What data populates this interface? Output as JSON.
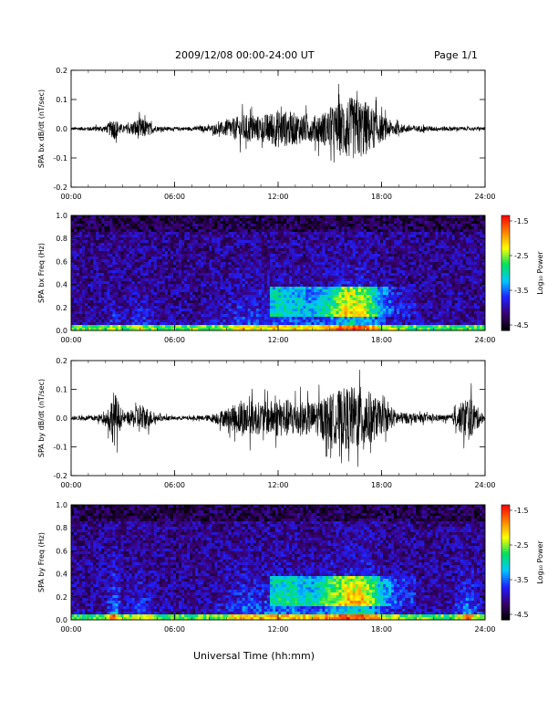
{
  "header": {
    "date_range": "2009/12/08  00:00-24:00 UT",
    "page": "Page 1/1"
  },
  "x_axis": {
    "title": "Universal Time (hh:mm)",
    "ticks": [
      "00:00",
      "06:00",
      "12:00",
      "18:00",
      "24:00"
    ]
  },
  "colorbar": {
    "label": "Log₁₀ Power",
    "ticks": [
      "-1.5",
      "-2.5",
      "-3.5",
      "-4.5"
    ],
    "range": [
      -4.5,
      -1.5
    ],
    "colors": [
      "#000000",
      "#3a0070",
      "#2020ff",
      "#00c8ff",
      "#00e060",
      "#ffff00",
      "#ff8000",
      "#ff0000"
    ]
  },
  "chart_data": [
    {
      "type": "line",
      "ylabel": "SPA bx dB/dt (nT/sec)",
      "ylim": [
        -0.2,
        0.2
      ],
      "yticks": [
        "0.2",
        "0.1",
        "0.0",
        "-0.1",
        "-0.2"
      ],
      "xlim_hours": [
        0,
        24
      ],
      "envelope": {
        "hours": [
          0,
          1,
          2,
          2.5,
          3,
          3.5,
          4,
          5,
          6,
          7,
          8,
          9,
          10,
          11,
          12,
          13,
          14,
          15,
          16,
          17,
          18,
          19,
          20,
          21,
          22,
          23,
          24
        ],
        "amplitude": [
          0.01,
          0.012,
          0.02,
          0.07,
          0.02,
          0.04,
          0.07,
          0.015,
          0.01,
          0.012,
          0.02,
          0.05,
          0.09,
          0.08,
          0.12,
          0.1,
          0.08,
          0.12,
          0.2,
          0.18,
          0.08,
          0.03,
          0.02,
          0.015,
          0.015,
          0.01,
          0.01
        ]
      }
    },
    {
      "type": "heatmap",
      "ylabel": "SPA bx Freq (Hz)",
      "ylim": [
        0.0,
        1.0
      ],
      "yticks": [
        "1.0",
        "0.8",
        "0.6",
        "0.4",
        "0.2",
        "0.0"
      ],
      "xlim_hours": [
        0,
        24
      ],
      "zlim": [
        -4.5,
        -1.5
      ],
      "color_scale": "Log₁₀ Power"
    },
    {
      "type": "line",
      "ylabel": "SPA by dB/dt (nT/sec)",
      "ylim": [
        -0.2,
        0.2
      ],
      "yticks": [
        "0.2",
        "0.1",
        "0.0",
        "-0.1",
        "-0.2"
      ],
      "xlim_hours": [
        0,
        24
      ],
      "envelope": {
        "hours": [
          0,
          1,
          2,
          2.5,
          3,
          3.5,
          4,
          5,
          6,
          7,
          8,
          9,
          10,
          11,
          12,
          13,
          14,
          15,
          16,
          17,
          18,
          19,
          20,
          21,
          22,
          23,
          24
        ],
        "amplitude": [
          0.012,
          0.015,
          0.03,
          0.18,
          0.03,
          0.05,
          0.1,
          0.02,
          0.012,
          0.012,
          0.02,
          0.06,
          0.12,
          0.1,
          0.12,
          0.12,
          0.1,
          0.15,
          0.2,
          0.2,
          0.1,
          0.04,
          0.03,
          0.02,
          0.02,
          0.15,
          0.01
        ]
      }
    },
    {
      "type": "heatmap",
      "ylabel": "SPA by Freq (Hz)",
      "ylim": [
        0.0,
        1.0
      ],
      "yticks": [
        "1.0",
        "0.8",
        "0.6",
        "0.4",
        "0.2",
        "0.0"
      ],
      "xlim_hours": [
        0,
        24
      ],
      "zlim": [
        -4.5,
        -1.5
      ],
      "color_scale": "Log₁₀ Power"
    }
  ]
}
